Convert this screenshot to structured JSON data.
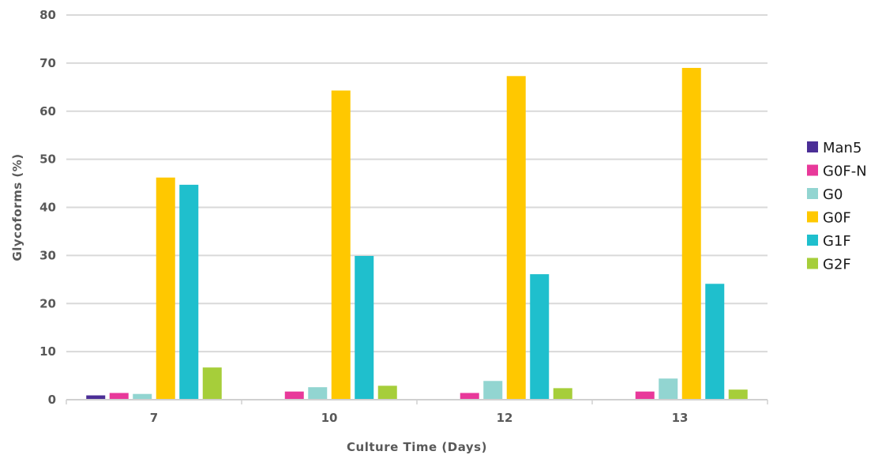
{
  "chart_data": {
    "type": "bar",
    "xlabel": "Culture Time (Days)",
    "ylabel": "Glycoforms (%)",
    "ylim": [
      0,
      80
    ],
    "yticks": [
      0,
      10,
      20,
      30,
      40,
      50,
      60,
      70,
      80
    ],
    "grid": true,
    "legend_position": "right",
    "categories": [
      "7",
      "10",
      "12",
      "13"
    ],
    "series": [
      {
        "name": "Man5",
        "color": "#4B2E96",
        "values": [
          0.9,
          null,
          null,
          null
        ]
      },
      {
        "name": "G0F-N",
        "color": "#E8399A",
        "values": [
          1.4,
          1.7,
          1.4,
          1.7
        ]
      },
      {
        "name": "G0",
        "color": "#92D5D1",
        "values": [
          1.2,
          2.6,
          3.9,
          4.4
        ]
      },
      {
        "name": "G0F",
        "color": "#FFC800",
        "values": [
          46.2,
          64.3,
          67.3,
          69.0
        ]
      },
      {
        "name": "G1F",
        "color": "#1FBFCD",
        "values": [
          44.7,
          29.9,
          26.1,
          24.1
        ]
      },
      {
        "name": "G2F",
        "color": "#A6CE3A",
        "values": [
          6.7,
          2.9,
          2.4,
          2.1
        ]
      }
    ]
  }
}
